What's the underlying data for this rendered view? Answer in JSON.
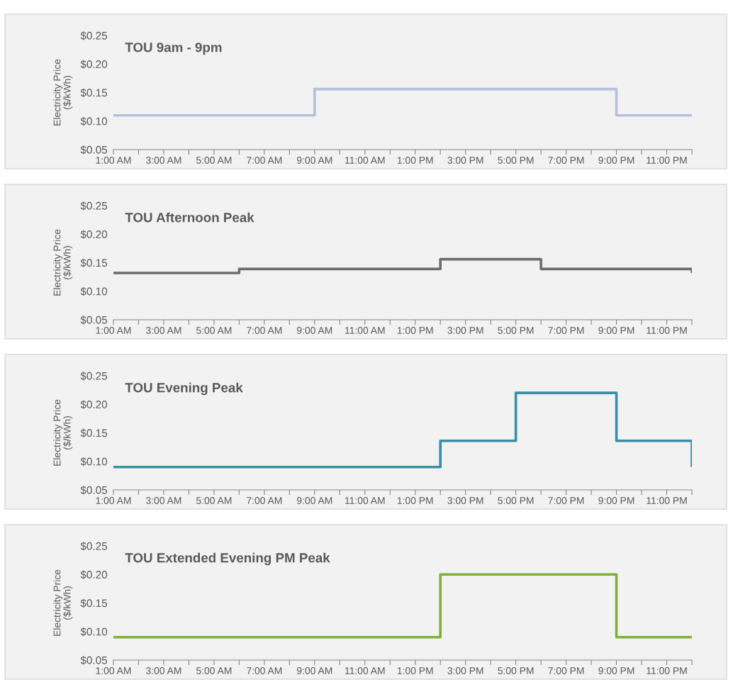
{
  "chart_data": [
    {
      "type": "step",
      "title": "TOU 9am - 9pm",
      "ylabel": "Electricity Price\n($/kWh)",
      "x": [
        1,
        9,
        21,
        24
      ],
      "values": [
        0.11,
        0.156,
        0.11,
        0.11
      ],
      "color": "#b4c0dd",
      "xlim": [
        1,
        24
      ],
      "ylim": [
        0.05,
        0.25
      ],
      "yticks": [
        {
          "value": 0.05,
          "label": "$0.05"
        },
        {
          "value": 0.1,
          "label": "$0.10"
        },
        {
          "value": 0.15,
          "label": "$0.15"
        },
        {
          "value": 0.2,
          "label": "$0.20"
        },
        {
          "value": 0.25,
          "label": "$0.25"
        }
      ],
      "xticks": [
        {
          "value": 1,
          "label": "1:00 AM"
        },
        {
          "value": 2,
          "label": null
        },
        {
          "value": 3,
          "label": "3:00 AM"
        },
        {
          "value": 4,
          "label": null
        },
        {
          "value": 5,
          "label": "5:00 AM"
        },
        {
          "value": 6,
          "label": null
        },
        {
          "value": 7,
          "label": "7:00 AM"
        },
        {
          "value": 8,
          "label": null
        },
        {
          "value": 9,
          "label": "9:00 AM"
        },
        {
          "value": 10,
          "label": null
        },
        {
          "value": 11,
          "label": "11:00 AM"
        },
        {
          "value": 12,
          "label": null
        },
        {
          "value": 13,
          "label": "1:00 PM"
        },
        {
          "value": 14,
          "label": null
        },
        {
          "value": 15,
          "label": "3:00 PM"
        },
        {
          "value": 16,
          "label": null
        },
        {
          "value": 17,
          "label": "5:00 PM"
        },
        {
          "value": 18,
          "label": null
        },
        {
          "value": 19,
          "label": "7:00 PM"
        },
        {
          "value": 20,
          "label": null
        },
        {
          "value": 21,
          "label": "9:00 PM"
        },
        {
          "value": 22,
          "label": null
        },
        {
          "value": 23,
          "label": "11:00 PM"
        },
        {
          "value": 24,
          "label": null
        }
      ],
      "grid": false
    },
    {
      "type": "step",
      "title": "TOU Afternoon Peak",
      "ylabel": "Electricity Price\n($/kWh)",
      "x": [
        1,
        6,
        14,
        18,
        24
      ],
      "values": [
        0.132,
        0.139,
        0.156,
        0.139,
        0.132
      ],
      "color": "#6d6d6d",
      "xlim": [
        1,
        24
      ],
      "ylim": [
        0.05,
        0.25
      ],
      "yticks": [
        {
          "value": 0.05,
          "label": "$0.05"
        },
        {
          "value": 0.1,
          "label": "$0.10"
        },
        {
          "value": 0.15,
          "label": "$0.15"
        },
        {
          "value": 0.2,
          "label": "$0.20"
        },
        {
          "value": 0.25,
          "label": "$0.25"
        }
      ],
      "xticks": [
        {
          "value": 1,
          "label": "1:00 AM"
        },
        {
          "value": 2,
          "label": null
        },
        {
          "value": 3,
          "label": "3:00 AM"
        },
        {
          "value": 4,
          "label": null
        },
        {
          "value": 5,
          "label": "5:00 AM"
        },
        {
          "value": 6,
          "label": null
        },
        {
          "value": 7,
          "label": "7:00 AM"
        },
        {
          "value": 8,
          "label": null
        },
        {
          "value": 9,
          "label": "9:00 AM"
        },
        {
          "value": 10,
          "label": null
        },
        {
          "value": 11,
          "label": "11:00 AM"
        },
        {
          "value": 12,
          "label": null
        },
        {
          "value": 13,
          "label": "1:00 PM"
        },
        {
          "value": 14,
          "label": null
        },
        {
          "value": 15,
          "label": "3:00 PM"
        },
        {
          "value": 16,
          "label": null
        },
        {
          "value": 17,
          "label": "5:00 PM"
        },
        {
          "value": 18,
          "label": null
        },
        {
          "value": 19,
          "label": "7:00 PM"
        },
        {
          "value": 20,
          "label": null
        },
        {
          "value": 21,
          "label": "9:00 PM"
        },
        {
          "value": 22,
          "label": null
        },
        {
          "value": 23,
          "label": "11:00 PM"
        },
        {
          "value": 24,
          "label": null
        }
      ],
      "grid": false
    },
    {
      "type": "step",
      "title": "TOU Evening Peak",
      "ylabel": "Electricity Price\n($/kWh)",
      "x": [
        1,
        14,
        17,
        21,
        24
      ],
      "values": [
        0.09,
        0.136,
        0.22,
        0.136,
        0.09
      ],
      "color": "#3a8fa3",
      "xlim": [
        1,
        24
      ],
      "ylim": [
        0.05,
        0.25
      ],
      "yticks": [
        {
          "value": 0.05,
          "label": "$0.05"
        },
        {
          "value": 0.1,
          "label": "$0.10"
        },
        {
          "value": 0.15,
          "label": "$0.15"
        },
        {
          "value": 0.2,
          "label": "$0.20"
        },
        {
          "value": 0.25,
          "label": "$0.25"
        }
      ],
      "xticks": [
        {
          "value": 1,
          "label": "1:00 AM"
        },
        {
          "value": 2,
          "label": null
        },
        {
          "value": 3,
          "label": "3:00 AM"
        },
        {
          "value": 4,
          "label": null
        },
        {
          "value": 5,
          "label": "5:00 AM"
        },
        {
          "value": 6,
          "label": null
        },
        {
          "value": 7,
          "label": "7:00 AM"
        },
        {
          "value": 8,
          "label": null
        },
        {
          "value": 9,
          "label": "9:00 AM"
        },
        {
          "value": 10,
          "label": null
        },
        {
          "value": 11,
          "label": "11:00 AM"
        },
        {
          "value": 12,
          "label": null
        },
        {
          "value": 13,
          "label": "1:00 PM"
        },
        {
          "value": 14,
          "label": null
        },
        {
          "value": 15,
          "label": "3:00 PM"
        },
        {
          "value": 16,
          "label": null
        },
        {
          "value": 17,
          "label": "5:00 PM"
        },
        {
          "value": 18,
          "label": null
        },
        {
          "value": 19,
          "label": "7:00 PM"
        },
        {
          "value": 20,
          "label": null
        },
        {
          "value": 21,
          "label": "9:00 PM"
        },
        {
          "value": 22,
          "label": null
        },
        {
          "value": 23,
          "label": "11:00 PM"
        },
        {
          "value": 24,
          "label": null
        }
      ],
      "grid": false
    },
    {
      "type": "step",
      "title": "TOU Extended Evening PM Peak",
      "ylabel": "Electricity Price\n($/kWh)",
      "x": [
        1,
        14,
        21,
        24
      ],
      "values": [
        0.09,
        0.2,
        0.09,
        0.09
      ],
      "color": "#80b03a",
      "xlim": [
        1,
        24
      ],
      "ylim": [
        0.05,
        0.25
      ],
      "yticks": [
        {
          "value": 0.05,
          "label": "$0.05"
        },
        {
          "value": 0.1,
          "label": "$0.10"
        },
        {
          "value": 0.15,
          "label": "$0.15"
        },
        {
          "value": 0.2,
          "label": "$0.20"
        },
        {
          "value": 0.25,
          "label": "$0.25"
        }
      ],
      "xticks": [
        {
          "value": 1,
          "label": "1:00 AM"
        },
        {
          "value": 2,
          "label": null
        },
        {
          "value": 3,
          "label": "3:00 AM"
        },
        {
          "value": 4,
          "label": null
        },
        {
          "value": 5,
          "label": "5:00 AM"
        },
        {
          "value": 6,
          "label": null
        },
        {
          "value": 7,
          "label": "7:00 AM"
        },
        {
          "value": 8,
          "label": null
        },
        {
          "value": 9,
          "label": "9:00 AM"
        },
        {
          "value": 10,
          "label": null
        },
        {
          "value": 11,
          "label": "11:00 AM"
        },
        {
          "value": 12,
          "label": null
        },
        {
          "value": 13,
          "label": "1:00 PM"
        },
        {
          "value": 14,
          "label": null
        },
        {
          "value": 15,
          "label": "3:00 PM"
        },
        {
          "value": 16,
          "label": null
        },
        {
          "value": 17,
          "label": "5:00 PM"
        },
        {
          "value": 18,
          "label": null
        },
        {
          "value": 19,
          "label": "7:00 PM"
        },
        {
          "value": 20,
          "label": null
        },
        {
          "value": 21,
          "label": "9:00 PM"
        },
        {
          "value": 22,
          "label": null
        },
        {
          "value": 23,
          "label": "11:00 PM"
        },
        {
          "value": 24,
          "label": null
        }
      ],
      "grid": false
    }
  ]
}
